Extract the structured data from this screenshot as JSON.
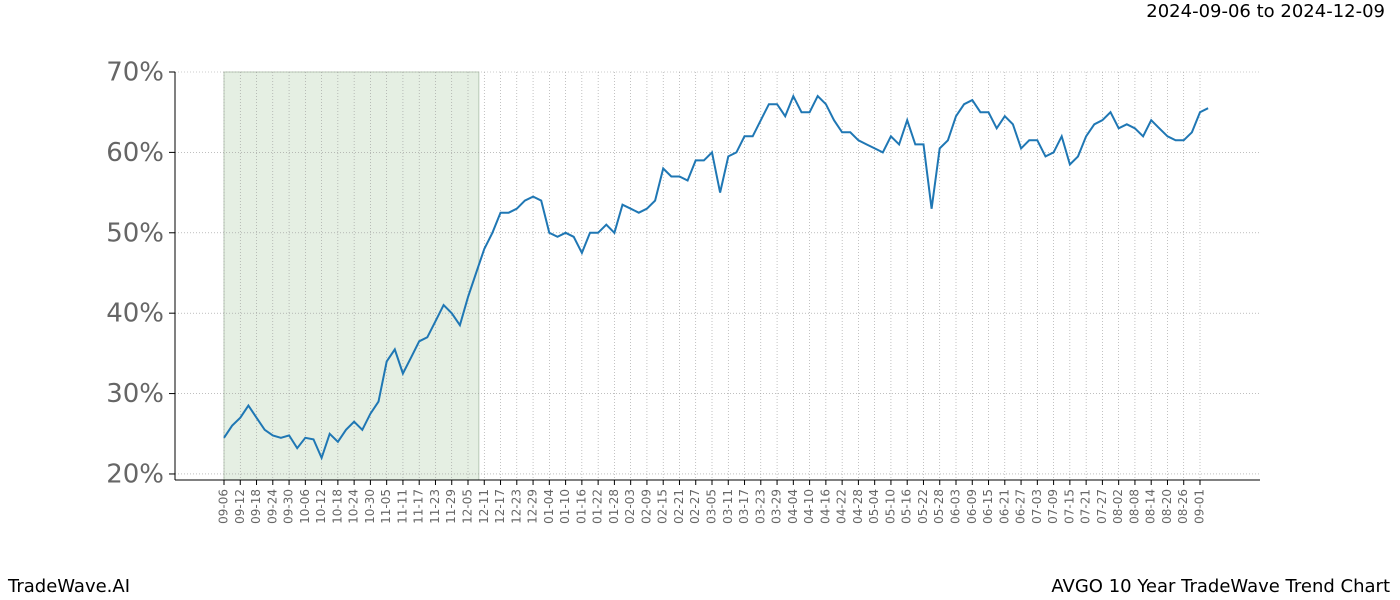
{
  "chart_data": {
    "type": "line",
    "title": "2024-09-06 to 2024-12-09",
    "footer_left": "TradeWave.AI",
    "footer_right": "AVGO 10 Year TradeWave Trend Chart",
    "categories": [
      "09-06",
      null,
      "09-12",
      null,
      "09-18",
      null,
      "09-24",
      null,
      "09-30",
      null,
      "10-06",
      null,
      "10-12",
      null,
      "10-18",
      null,
      "10-24",
      null,
      "10-30",
      null,
      "11-05",
      null,
      "11-11",
      null,
      "11-17",
      null,
      "11-23",
      null,
      "11-29",
      null,
      "12-05",
      null,
      "12-11",
      null,
      "12-17",
      null,
      "12-23",
      null,
      "12-29",
      null,
      "01-04",
      null,
      "01-10",
      null,
      "01-16",
      null,
      "01-22",
      null,
      "01-28",
      null,
      "02-03",
      null,
      "02-09",
      null,
      "02-15",
      null,
      "02-21",
      null,
      "02-27",
      null,
      "03-05",
      null,
      "03-11",
      null,
      "03-17",
      null,
      "03-23",
      null,
      "03-29",
      null,
      "04-04",
      null,
      "04-10",
      null,
      "04-16",
      null,
      "04-22",
      null,
      "04-28",
      null,
      "05-04",
      null,
      "05-10",
      null,
      "05-16",
      null,
      "05-22",
      null,
      "05-28",
      null,
      "06-03",
      null,
      "06-09",
      null,
      "06-15",
      null,
      "06-21",
      null,
      "06-27",
      null,
      "07-03",
      null,
      "07-09",
      null,
      "07-15",
      null,
      "07-21",
      null,
      "07-27",
      null,
      "08-02",
      null,
      "08-08",
      null,
      "08-14",
      null,
      "08-20",
      null,
      "08-26",
      null,
      "09-01",
      null
    ],
    "series": [
      {
        "color": "#1f77b4",
        "values": [
          24.5,
          26,
          27,
          28.5,
          27,
          25.5,
          24.8,
          24.5,
          24.8,
          23.2,
          24.5,
          24.3,
          22,
          25,
          24,
          25.5,
          26.5,
          25.5,
          27.5,
          29,
          34,
          35.5,
          32.5,
          34.5,
          36.5,
          37,
          39,
          41,
          40,
          38.5,
          42,
          45,
          48,
          50,
          52.5,
          52.5,
          53,
          54,
          54.5,
          54,
          50,
          49.5,
          50,
          49.5,
          47.5,
          50,
          50,
          51,
          50,
          53.5,
          53,
          52.5,
          53,
          54,
          58,
          57,
          57,
          56.5,
          59,
          59,
          60,
          55,
          59.5,
          60,
          62,
          62,
          64,
          66,
          66,
          64.5,
          67,
          65,
          65,
          67,
          66,
          64,
          62.5,
          62.5,
          61.5,
          61,
          60.5,
          60,
          62,
          61,
          64,
          61,
          61,
          53,
          60.5,
          61.5,
          64.5,
          66,
          66.5,
          65,
          65,
          63,
          64.5,
          63.5,
          60.5,
          61.5,
          61.5,
          59.5,
          60,
          62,
          58.5,
          59.5,
          62,
          63.5,
          64,
          65,
          63,
          63.5,
          63,
          62,
          64,
          63,
          62,
          61.5,
          61.5,
          62.5,
          65,
          65.5
        ]
      }
    ],
    "shaded_range": [
      0,
      31.33
    ],
    "shade_color": "#e5efe3",
    "ylim": [
      19.25,
      70
    ],
    "yticks": [
      {
        "value": 20,
        "label": "20%"
      },
      {
        "value": 30,
        "label": "30%"
      },
      {
        "value": 40,
        "label": "40%"
      },
      {
        "value": 50,
        "label": "50%"
      },
      {
        "value": 60,
        "label": "60%"
      },
      {
        "value": 70,
        "label": "70%"
      }
    ],
    "grid": true
  }
}
